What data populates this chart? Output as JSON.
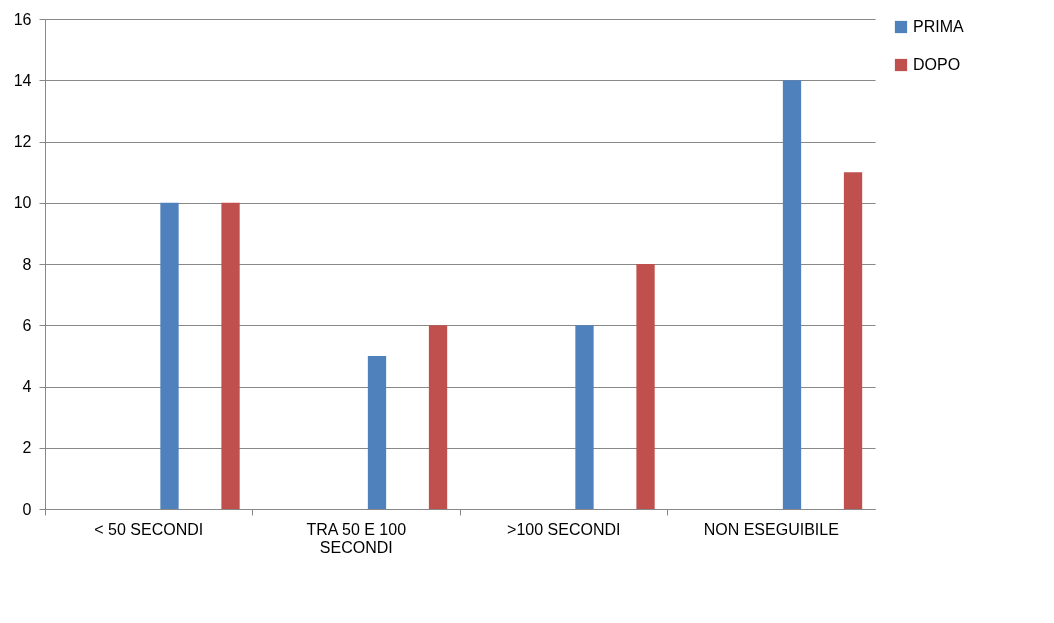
{
  "chart_data": {
    "type": "bar",
    "categories": [
      "< 50 SECONDI",
      "TRA 50 E 100 SECONDI",
      ">100 SECONDI",
      "NON ESEGUIBILE"
    ],
    "series": [
      {
        "name": "PRIMA",
        "color": "#4f81bd",
        "values": [
          10,
          5,
          6,
          14
        ]
      },
      {
        "name": "DOPO",
        "color": "#c0504d",
        "values": [
          10,
          6,
          8,
          11
        ]
      }
    ],
    "ylim": [
      0,
      16
    ],
    "yticks": [
      0,
      2,
      4,
      6,
      8,
      10,
      12,
      14,
      16
    ],
    "grid": "y",
    "legend": "right"
  }
}
